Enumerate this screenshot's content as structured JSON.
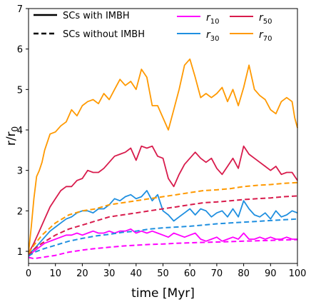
{
  "chart_data": {
    "type": "line",
    "xlabel": "time [Myr]",
    "ylabel": "r/r",
    "ylabel_sub": "0",
    "xlim": [
      0,
      100
    ],
    "ylim": [
      0.7,
      7.0
    ],
    "x_ticks": [
      0,
      10,
      20,
      30,
      40,
      50,
      60,
      70,
      80,
      90,
      100
    ],
    "y_ticks": [
      1,
      2,
      3,
      4,
      5,
      6,
      7
    ],
    "grid": false,
    "legend": {
      "placement": "top",
      "style_entries": [
        {
          "label": "SCs with IMBH",
          "linestyle": "solid"
        },
        {
          "label": "SCs without IMBH",
          "linestyle": "dashed"
        }
      ],
      "color_entries": [
        {
          "label": "r",
          "sub": "10",
          "color": "#ff00ff"
        },
        {
          "label": "r",
          "sub": "30",
          "color": "#1f8fe0"
        },
        {
          "label": "r",
          "sub": "50",
          "color": "#d81b4c"
        },
        {
          "label": "r",
          "sub": "70",
          "color": "#ff9900"
        }
      ]
    },
    "series": [
      {
        "radius": "r70",
        "imbh": true,
        "color": "#ff9900",
        "linestyle": "solid",
        "x": [
          0,
          1,
          2,
          3,
          4,
          5,
          6,
          8,
          10,
          12,
          14,
          16,
          18,
          20,
          22,
          24,
          26,
          28,
          30,
          32,
          34,
          36,
          38,
          40,
          42,
          44,
          46,
          48,
          50,
          52,
          54,
          56,
          58,
          60,
          62,
          64,
          66,
          68,
          70,
          72,
          74,
          76,
          78,
          80,
          82,
          84,
          86,
          88,
          90,
          92,
          94,
          96,
          98,
          99,
          100
        ],
        "y": [
          0.95,
          1.6,
          2.3,
          2.85,
          3.0,
          3.2,
          3.5,
          3.9,
          3.95,
          4.1,
          4.2,
          4.5,
          4.35,
          4.6,
          4.7,
          4.75,
          4.65,
          4.9,
          4.75,
          5.0,
          5.25,
          5.1,
          5.2,
          5.0,
          5.5,
          5.3,
          4.6,
          4.6,
          4.3,
          4.0,
          4.5,
          5.0,
          5.6,
          5.75,
          5.3,
          4.8,
          4.9,
          4.8,
          4.9,
          5.05,
          4.7,
          5.0,
          4.6,
          5.05,
          5.6,
          5.0,
          4.85,
          4.75,
          4.5,
          4.4,
          4.7,
          4.8,
          4.7,
          4.3,
          4.05
        ]
      },
      {
        "radius": "r50",
        "imbh": true,
        "color": "#d81b4c",
        "linestyle": "solid",
        "x": [
          0,
          2,
          4,
          6,
          8,
          10,
          12,
          14,
          16,
          18,
          20,
          22,
          24,
          26,
          28,
          30,
          32,
          34,
          36,
          38,
          40,
          42,
          44,
          46,
          48,
          50,
          52,
          54,
          56,
          58,
          60,
          62,
          64,
          66,
          68,
          70,
          72,
          74,
          76,
          78,
          80,
          82,
          84,
          86,
          88,
          90,
          92,
          94,
          96,
          98,
          100
        ],
        "y": [
          0.95,
          1.2,
          1.5,
          1.8,
          2.1,
          2.3,
          2.5,
          2.6,
          2.6,
          2.75,
          2.8,
          3.0,
          2.95,
          2.95,
          3.05,
          3.2,
          3.35,
          3.4,
          3.45,
          3.55,
          3.25,
          3.6,
          3.55,
          3.6,
          3.35,
          3.3,
          2.8,
          2.6,
          2.9,
          3.15,
          3.3,
          3.45,
          3.3,
          3.2,
          3.3,
          3.05,
          2.9,
          3.1,
          3.3,
          3.05,
          3.6,
          3.4,
          3.3,
          3.2,
          3.1,
          3.0,
          3.1,
          2.9,
          2.95,
          2.95,
          2.75
        ]
      },
      {
        "radius": "r30",
        "imbh": true,
        "color": "#1f8fe0",
        "linestyle": "solid",
        "x": [
          0,
          2,
          4,
          6,
          8,
          10,
          12,
          14,
          16,
          18,
          20,
          22,
          24,
          26,
          28,
          30,
          32,
          34,
          36,
          38,
          40,
          42,
          44,
          46,
          48,
          50,
          52,
          54,
          56,
          58,
          60,
          62,
          64,
          66,
          68,
          70,
          72,
          74,
          76,
          78,
          80,
          82,
          84,
          86,
          88,
          90,
          92,
          94,
          96,
          98,
          100
        ],
        "y": [
          0.92,
          1.05,
          1.2,
          1.35,
          1.5,
          1.6,
          1.7,
          1.8,
          1.85,
          1.95,
          2.0,
          2.0,
          1.95,
          2.05,
          2.05,
          2.15,
          2.3,
          2.25,
          2.35,
          2.4,
          2.3,
          2.35,
          2.5,
          2.25,
          2.4,
          2.0,
          1.9,
          1.75,
          1.85,
          1.95,
          2.05,
          1.9,
          2.05,
          2.0,
          1.85,
          1.95,
          2.0,
          1.85,
          2.05,
          1.85,
          2.25,
          2.05,
          1.9,
          1.85,
          1.95,
          1.8,
          2.0,
          1.85,
          1.9,
          2.0,
          1.95
        ]
      },
      {
        "radius": "r10",
        "imbh": true,
        "color": "#ff00ff",
        "linestyle": "solid",
        "x": [
          0,
          2,
          4,
          6,
          8,
          10,
          12,
          14,
          16,
          18,
          20,
          22,
          24,
          26,
          28,
          30,
          32,
          34,
          36,
          38,
          40,
          42,
          44,
          46,
          48,
          50,
          52,
          54,
          56,
          58,
          60,
          62,
          64,
          66,
          68,
          70,
          72,
          74,
          76,
          78,
          80,
          82,
          84,
          86,
          88,
          90,
          92,
          94,
          96,
          98,
          100
        ],
        "y": [
          0.88,
          1.0,
          1.1,
          1.2,
          1.25,
          1.3,
          1.35,
          1.4,
          1.4,
          1.45,
          1.4,
          1.45,
          1.5,
          1.45,
          1.45,
          1.5,
          1.45,
          1.5,
          1.5,
          1.55,
          1.45,
          1.5,
          1.45,
          1.5,
          1.45,
          1.4,
          1.35,
          1.45,
          1.4,
          1.35,
          1.4,
          1.45,
          1.3,
          1.25,
          1.3,
          1.35,
          1.25,
          1.3,
          1.35,
          1.3,
          1.45,
          1.3,
          1.3,
          1.35,
          1.3,
          1.35,
          1.3,
          1.3,
          1.35,
          1.3,
          1.3
        ]
      },
      {
        "radius": "r70",
        "imbh": false,
        "color": "#ff9900",
        "linestyle": "dashed",
        "x": [
          0,
          2,
          5,
          10,
          15,
          20,
          25,
          30,
          35,
          40,
          45,
          50,
          55,
          60,
          65,
          70,
          75,
          80,
          85,
          90,
          95,
          100
        ],
        "y": [
          0.95,
          1.15,
          1.4,
          1.7,
          1.9,
          2.0,
          2.05,
          2.15,
          2.2,
          2.25,
          2.3,
          2.35,
          2.4,
          2.45,
          2.5,
          2.52,
          2.55,
          2.6,
          2.63,
          2.65,
          2.68,
          2.7
        ]
      },
      {
        "radius": "r50",
        "imbh": false,
        "color": "#d81b4c",
        "linestyle": "dashed",
        "x": [
          0,
          2,
          5,
          10,
          15,
          20,
          25,
          30,
          35,
          40,
          45,
          50,
          55,
          60,
          65,
          70,
          75,
          80,
          85,
          90,
          95,
          100
        ],
        "y": [
          0.9,
          1.05,
          1.2,
          1.4,
          1.55,
          1.65,
          1.75,
          1.85,
          1.9,
          1.95,
          2.0,
          2.05,
          2.1,
          2.15,
          2.2,
          2.22,
          2.25,
          2.28,
          2.3,
          2.32,
          2.35,
          2.37
        ]
      },
      {
        "radius": "r30",
        "imbh": false,
        "color": "#1f8fe0",
        "linestyle": "dashed",
        "x": [
          0,
          2,
          5,
          10,
          15,
          20,
          25,
          30,
          35,
          40,
          45,
          50,
          55,
          60,
          65,
          70,
          75,
          80,
          85,
          90,
          95,
          100
        ],
        "y": [
          0.88,
          0.97,
          1.05,
          1.15,
          1.25,
          1.32,
          1.38,
          1.42,
          1.47,
          1.5,
          1.55,
          1.58,
          1.6,
          1.62,
          1.65,
          1.68,
          1.7,
          1.72,
          1.74,
          1.76,
          1.78,
          1.8
        ]
      },
      {
        "radius": "r10",
        "imbh": false,
        "color": "#ff00ff",
        "linestyle": "dashed",
        "x": [
          0,
          2,
          5,
          10,
          15,
          20,
          25,
          30,
          35,
          40,
          45,
          50,
          55,
          60,
          65,
          70,
          75,
          80,
          85,
          90,
          95,
          100
        ],
        "y": [
          0.85,
          0.82,
          0.85,
          0.9,
          0.98,
          1.03,
          1.07,
          1.1,
          1.13,
          1.15,
          1.17,
          1.18,
          1.2,
          1.21,
          1.22,
          1.23,
          1.24,
          1.25,
          1.26,
          1.27,
          1.28,
          1.29
        ]
      }
    ]
  }
}
